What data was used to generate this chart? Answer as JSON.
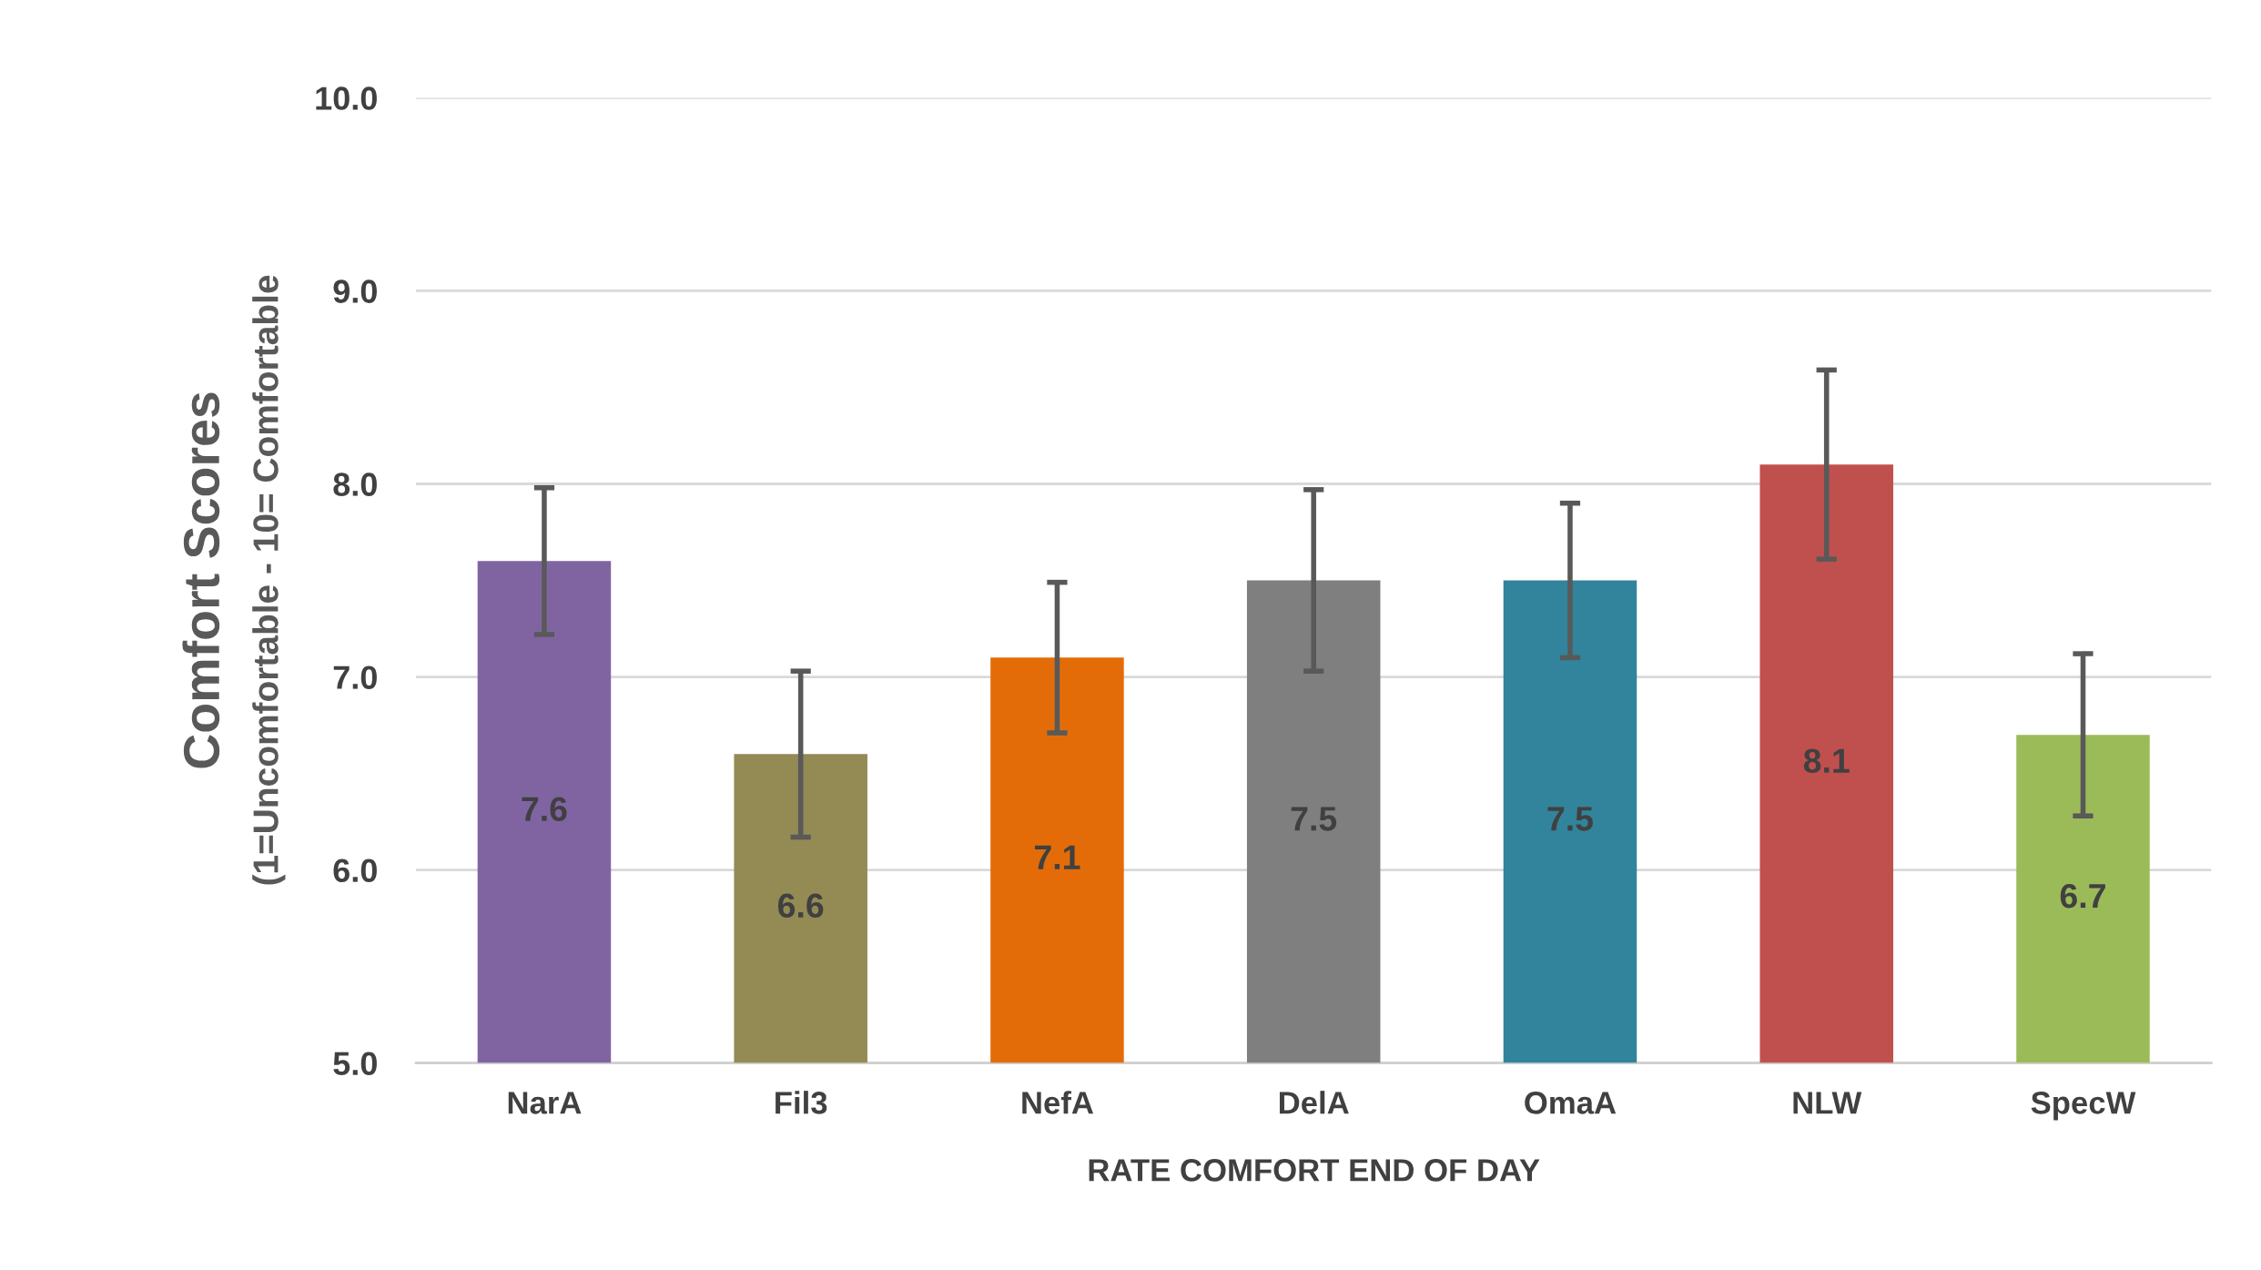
{
  "chart_data": {
    "type": "bar",
    "xlabel": "RATE COMFORT END OF DAY",
    "ylabel": "Comfort Scores\n(1=Uncomfortable - 10= Comfortable",
    "categories": [
      "NarA",
      "Fil3",
      "NefA",
      "DelA",
      "OmaA",
      "NLW",
      "SpecW"
    ],
    "values": [
      7.6,
      6.6,
      7.1,
      7.5,
      7.5,
      8.1,
      6.7
    ],
    "colors": [
      "#8064a2",
      "#948a54",
      "#e36c09",
      "#7f7f7f",
      "#31849b",
      "#c0504d",
      "#9bbb59"
    ],
    "errors": [
      0.38,
      0.43,
      0.39,
      0.47,
      0.4,
      0.49,
      0.42
    ],
    "ylim": [
      5.0,
      10.0
    ],
    "yticks": [
      {
        "value": 5,
        "label": "5.0"
      },
      {
        "value": 6,
        "label": "6.0"
      },
      {
        "value": 7,
        "label": "7.0"
      },
      {
        "value": 8,
        "label": "8.0"
      },
      {
        "value": 9,
        "label": "9.0"
      },
      {
        "value": 10,
        "label": "10.0"
      }
    ],
    "grid": "y",
    "data_labels": true,
    "legend": false
  }
}
